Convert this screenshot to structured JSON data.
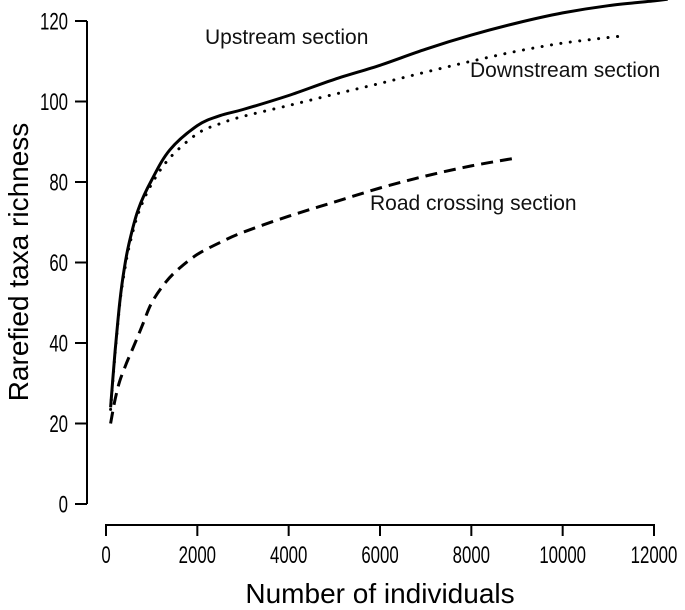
{
  "chart_data": {
    "type": "line",
    "title": "",
    "xlabel": "Number of individuals",
    "ylabel": "Rarefied taxa richness",
    "xlim": [
      0,
      12000
    ],
    "ylim": [
      0,
      125
    ],
    "x_ticks": [
      0,
      2000,
      4000,
      6000,
      8000,
      10000,
      12000
    ],
    "y_ticks": [
      0,
      20,
      40,
      60,
      80,
      100,
      120
    ],
    "grid": false,
    "legend_position": "inline-annotations",
    "line_color": "#000000",
    "background": "#ffffff",
    "series": [
      {
        "name": "Upstream section",
        "line_style": "solid",
        "points": [
          [
            100,
            24
          ],
          [
            150,
            31
          ],
          [
            200,
            38
          ],
          [
            300,
            50
          ],
          [
            400,
            58.5
          ],
          [
            500,
            64.5
          ],
          [
            700,
            73
          ],
          [
            1000,
            80.5
          ],
          [
            1400,
            88
          ],
          [
            2000,
            94
          ],
          [
            2500,
            96.5
          ],
          [
            3000,
            98
          ],
          [
            4000,
            101.5
          ],
          [
            5000,
            105.5
          ],
          [
            6000,
            109
          ],
          [
            7000,
            113
          ],
          [
            8000,
            116.5
          ],
          [
            9000,
            119.5
          ],
          [
            10000,
            122
          ],
          [
            11000,
            123.8
          ],
          [
            12000,
            125
          ],
          [
            12300,
            125.4
          ]
        ]
      },
      {
        "name": "Downstream section",
        "line_style": "dotted",
        "points": [
          [
            100,
            23.5
          ],
          [
            150,
            30.5
          ],
          [
            200,
            37.5
          ],
          [
            300,
            49.5
          ],
          [
            400,
            57.5
          ],
          [
            500,
            63.5
          ],
          [
            700,
            72
          ],
          [
            1000,
            79.5
          ],
          [
            1400,
            86
          ],
          [
            2000,
            92
          ],
          [
            2500,
            94.5
          ],
          [
            3000,
            96.3
          ],
          [
            4000,
            99
          ],
          [
            5000,
            101.8
          ],
          [
            6000,
            104.5
          ],
          [
            7000,
            107.3
          ],
          [
            8000,
            110
          ],
          [
            9000,
            112.5
          ],
          [
            10000,
            114.5
          ],
          [
            11000,
            115.9
          ],
          [
            11250,
            116.2
          ]
        ]
      },
      {
        "name": "Road crossing section",
        "line_style": "dashed",
        "points": [
          [
            100,
            20
          ],
          [
            200,
            26
          ],
          [
            300,
            30.5
          ],
          [
            450,
            35
          ],
          [
            600,
            39
          ],
          [
            800,
            44.5
          ],
          [
            1000,
            50
          ],
          [
            1300,
            55
          ],
          [
            1600,
            58.5
          ],
          [
            2000,
            62
          ],
          [
            2500,
            65
          ],
          [
            3000,
            67.5
          ],
          [
            4000,
            71.5
          ],
          [
            5000,
            75
          ],
          [
            6000,
            78.5
          ],
          [
            7000,
            81.5
          ],
          [
            8000,
            84
          ],
          [
            9000,
            86
          ]
        ]
      }
    ]
  }
}
